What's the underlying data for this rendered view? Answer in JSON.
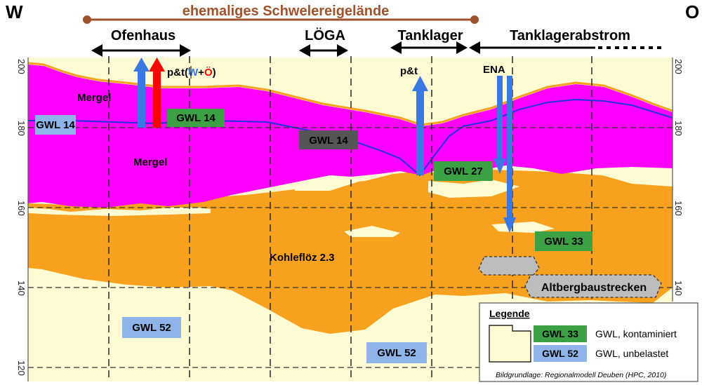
{
  "compass": {
    "west": "W",
    "east": "O"
  },
  "site_label": "ehemaliges Schwelereigelände",
  "zones": {
    "ofenhaus": "Ofenhaus",
    "loega": "LÖGA",
    "tanklager": "Tanklager",
    "tanklagerabstrom": "Tanklagerabstrom"
  },
  "measures": {
    "pt_left_prefix": "p&t",
    "pt_left_open": "(",
    "pt_left_w": "W",
    "pt_left_plus": "+",
    "pt_left_o": "Ö",
    "pt_left_close": ")",
    "pt_right": "p&t",
    "ena": "ENA"
  },
  "layers": {
    "mergel_top": "Mergel",
    "mergel_mid": "Mergel",
    "kohlefloez": "Kohleflöz 2.3",
    "altbergbau": "Altbergbaustrecken"
  },
  "gwl": {
    "gwl14_left": "GWL 14",
    "gwl14_center_left": "GWL 14",
    "gwl14_center": "GWL 14",
    "gwl27": "GWL 27",
    "gwl33": "GWL 33",
    "gwl52_left": "GWL 52",
    "gwl52_center": "GWL 52"
  },
  "axis_left": [
    "200",
    "180",
    "160",
    "140",
    "120"
  ],
  "axis_right": [
    "200",
    "180",
    "160",
    "140"
  ],
  "legend": {
    "title": "Legende",
    "gwl33": "GWL 33",
    "gwl33_desc": "GWL, kontaminiert",
    "gwl52": "GWL 52",
    "gwl52_desc": "GWL, unbelastet",
    "source": "Bildgrundlage: Regionalmodell Deuben (HPC, 2010)"
  },
  "colors": {
    "mergel": "#ff00ff",
    "kohle": "#f7a11f",
    "sand": "#fdfbd3",
    "contaminated": "#3ca045",
    "unpolluted": "#8fb4ea",
    "water_line": "#2233dd",
    "arrow_blue": "#3a78e6",
    "arrow_red": "#ff0000",
    "site_brown": "#a0522d"
  }
}
